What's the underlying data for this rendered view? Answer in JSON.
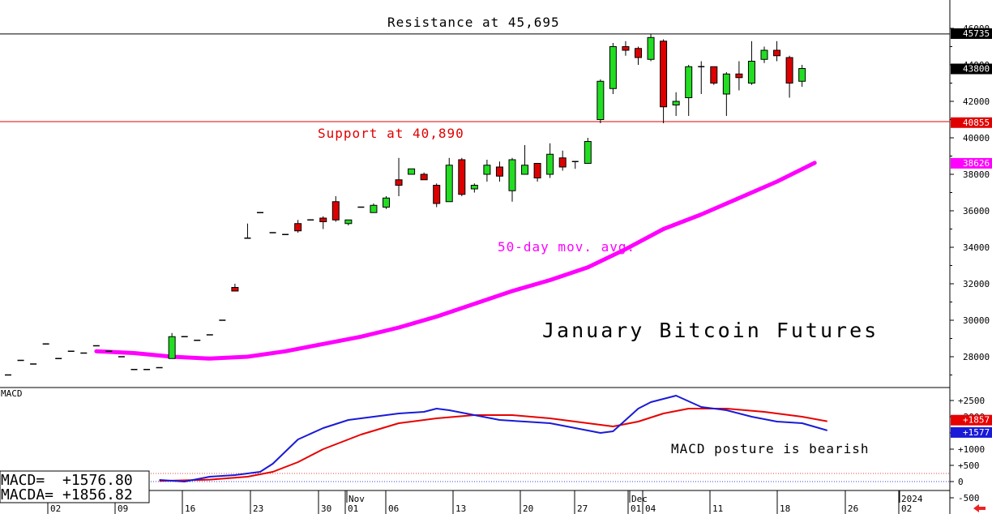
{
  "chart_data": [
    {
      "type": "candlestick",
      "title": "January Bitcoin Futures",
      "ylim": [
        26500,
        46500
      ],
      "y_ticks": [
        "46000",
        "44000",
        "42000",
        "40000",
        "38000",
        "36000",
        "34000",
        "32000",
        "30000",
        "28000"
      ],
      "grid": false,
      "x_tick_labels": [
        "02",
        "09",
        "16",
        "23",
        "30",
        "01",
        "06",
        "13",
        "20",
        "27",
        "01",
        "04",
        "11",
        "18",
        "26",
        "02"
      ],
      "x_month_labels": [
        "Nov",
        "Dec",
        "2024"
      ],
      "annotations": {
        "resistance": "Resistance at 45,695",
        "support": "Support at 40,890",
        "moving_average": "50-day mov. avg."
      },
      "levels": {
        "resistance": 45695,
        "support": 40890
      },
      "price_tags": {
        "resistance": "45735",
        "last": "43800",
        "support": "40855",
        "moving_average": "38626"
      },
      "colors": {
        "up": "#22dd22",
        "down": "#dd0000",
        "moving_average": "#ff00ff",
        "support": "#e00000",
        "resistance": "#000000"
      },
      "candles": [
        {
          "o": 27000,
          "h": 27000,
          "l": 27000,
          "c": 27000
        },
        {
          "o": 27800,
          "h": 27800,
          "l": 27800,
          "c": 27800
        },
        {
          "o": 27600,
          "h": 27600,
          "l": 27600,
          "c": 27600
        },
        {
          "o": 28700,
          "h": 28700,
          "l": 28700,
          "c": 28700
        },
        {
          "o": 27900,
          "h": 27900,
          "l": 27900,
          "c": 27900
        },
        {
          "o": 28300,
          "h": 28300,
          "l": 28300,
          "c": 28300
        },
        {
          "o": 28200,
          "h": 28200,
          "l": 28200,
          "c": 28200
        },
        {
          "o": 28600,
          "h": 28600,
          "l": 28600,
          "c": 28600
        },
        {
          "o": 28300,
          "h": 28300,
          "l": 28300,
          "c": 28300
        },
        {
          "o": 28000,
          "h": 28000,
          "l": 28000,
          "c": 28000
        },
        {
          "o": 27300,
          "h": 27300,
          "l": 27300,
          "c": 27300
        },
        {
          "o": 27300,
          "h": 27300,
          "l": 27300,
          "c": 27300
        },
        {
          "o": 27400,
          "h": 27400,
          "l": 27400,
          "c": 27400
        },
        {
          "o": 27900,
          "h": 29300,
          "l": 27900,
          "c": 29100
        },
        {
          "o": 29100,
          "h": 29100,
          "l": 29100,
          "c": 29100
        },
        {
          "o": 28900,
          "h": 28900,
          "l": 28900,
          "c": 28900
        },
        {
          "o": 29200,
          "h": 29200,
          "l": 29200,
          "c": 29200
        },
        {
          "o": 30000,
          "h": 30000,
          "l": 30000,
          "c": 30000
        },
        {
          "o": 31800,
          "h": 32000,
          "l": 31600,
          "c": 31600
        },
        {
          "o": 34500,
          "h": 35300,
          "l": 34500,
          "c": 34500
        },
        {
          "o": 35900,
          "h": 35900,
          "l": 35900,
          "c": 35900
        },
        {
          "o": 34800,
          "h": 34800,
          "l": 34800,
          "c": 34800
        },
        {
          "o": 34700,
          "h": 34700,
          "l": 34700,
          "c": 34700
        },
        {
          "o": 35300,
          "h": 35500,
          "l": 34800,
          "c": 34900
        },
        {
          "o": 35500,
          "h": 35500,
          "l": 35500,
          "c": 35500
        },
        {
          "o": 35600,
          "h": 35700,
          "l": 35000,
          "c": 35400
        },
        {
          "o": 36500,
          "h": 36800,
          "l": 35400,
          "c": 35500
        },
        {
          "o": 35300,
          "h": 35500,
          "l": 35200,
          "c": 35500
        },
        {
          "o": 36200,
          "h": 36200,
          "l": 36200,
          "c": 36200
        },
        {
          "o": 35900,
          "h": 36400,
          "l": 35900,
          "c": 36300
        },
        {
          "o": 36200,
          "h": 36800,
          "l": 36100,
          "c": 36700
        },
        {
          "o": 37700,
          "h": 38900,
          "l": 36800,
          "c": 37400
        },
        {
          "o": 38000,
          "h": 38300,
          "l": 38000,
          "c": 38300
        },
        {
          "o": 38000,
          "h": 38100,
          "l": 37700,
          "c": 37700
        },
        {
          "o": 37400,
          "h": 37500,
          "l": 36200,
          "c": 36400
        },
        {
          "o": 36500,
          "h": 38900,
          "l": 36500,
          "c": 38500
        },
        {
          "o": 38800,
          "h": 38900,
          "l": 36800,
          "c": 36900
        },
        {
          "o": 37200,
          "h": 37500,
          "l": 37000,
          "c": 37400
        },
        {
          "o": 38000,
          "h": 38800,
          "l": 37600,
          "c": 38500
        },
        {
          "o": 38400,
          "h": 38700,
          "l": 37600,
          "c": 37900
        },
        {
          "o": 37100,
          "h": 38900,
          "l": 36500,
          "c": 38800
        },
        {
          "o": 38000,
          "h": 39600,
          "l": 38000,
          "c": 38500
        },
        {
          "o": 38600,
          "h": 38600,
          "l": 37600,
          "c": 37800
        },
        {
          "o": 38000,
          "h": 39700,
          "l": 37800,
          "c": 39100
        },
        {
          "o": 38900,
          "h": 39300,
          "l": 38200,
          "c": 38400
        },
        {
          "o": 38700,
          "h": 38700,
          "l": 38300,
          "c": 38700
        },
        {
          "o": 38600,
          "h": 40000,
          "l": 38600,
          "c": 39800
        },
        {
          "o": 41000,
          "h": 43200,
          "l": 40800,
          "c": 43100
        },
        {
          "o": 42700,
          "h": 45200,
          "l": 42400,
          "c": 45000
        },
        {
          "o": 45000,
          "h": 45300,
          "l": 44500,
          "c": 44800
        },
        {
          "o": 44900,
          "h": 45000,
          "l": 44000,
          "c": 44400
        },
        {
          "o": 44300,
          "h": 45700,
          "l": 44200,
          "c": 45500
        },
        {
          "o": 45300,
          "h": 45400,
          "l": 40800,
          "c": 41700
        },
        {
          "o": 41800,
          "h": 42500,
          "l": 41200,
          "c": 42000
        },
        {
          "o": 42200,
          "h": 44000,
          "l": 41200,
          "c": 43900
        },
        {
          "o": 43900,
          "h": 44200,
          "l": 42400,
          "c": 43900
        },
        {
          "o": 43900,
          "h": 43900,
          "l": 42900,
          "c": 43000
        },
        {
          "o": 42400,
          "h": 43600,
          "l": 41200,
          "c": 43500
        },
        {
          "o": 43500,
          "h": 44200,
          "l": 42600,
          "c": 43300
        },
        {
          "o": 43000,
          "h": 45300,
          "l": 42900,
          "c": 44200
        },
        {
          "o": 44300,
          "h": 45000,
          "l": 44100,
          "c": 44800
        },
        {
          "o": 44800,
          "h": 45300,
          "l": 44200,
          "c": 44500
        },
        {
          "o": 44400,
          "h": 44500,
          "l": 42200,
          "c": 43000
        },
        {
          "o": 43100,
          "h": 44000,
          "l": 42800,
          "c": 43800
        }
      ],
      "moving_average": [
        {
          "i": 7,
          "v": 28300
        },
        {
          "i": 10,
          "v": 28200
        },
        {
          "i": 13,
          "v": 28000
        },
        {
          "i": 16,
          "v": 27900
        },
        {
          "i": 19,
          "v": 28000
        },
        {
          "i": 22,
          "v": 28300
        },
        {
          "i": 25,
          "v": 28700
        },
        {
          "i": 28,
          "v": 29100
        },
        {
          "i": 31,
          "v": 29600
        },
        {
          "i": 34,
          "v": 30200
        },
        {
          "i": 37,
          "v": 30900
        },
        {
          "i": 40,
          "v": 31600
        },
        {
          "i": 43,
          "v": 32200
        },
        {
          "i": 46,
          "v": 32900
        },
        {
          "i": 49,
          "v": 33900
        },
        {
          "i": 52,
          "v": 35000
        },
        {
          "i": 55,
          "v": 35800
        },
        {
          "i": 58,
          "v": 36700
        },
        {
          "i": 61,
          "v": 37600
        },
        {
          "i": 64,
          "v": 38626
        }
      ]
    },
    {
      "type": "line",
      "title": "MACD",
      "annotation": "MACD posture is bearish",
      "ylim": [
        -250,
        2850
      ],
      "y_ticks": [
        "+2500",
        "+2000",
        "+1500",
        "+1000",
        "+500",
        "0",
        "-500"
      ],
      "readout": {
        "macd_label": "MACD=",
        "macd_value": "+1576.80",
        "macda_label": "MACDA=",
        "macda_value": "+1856.82"
      },
      "price_tags": {
        "macda": "+1857",
        "macd": "+1577"
      },
      "series": [
        {
          "name": "MACD",
          "color": "#1a1ad8",
          "points": [
            {
              "i": 12,
              "v": 50
            },
            {
              "i": 14,
              "v": 0
            },
            {
              "i": 16,
              "v": 150
            },
            {
              "i": 18,
              "v": 200
            },
            {
              "i": 20,
              "v": 300
            },
            {
              "i": 21,
              "v": 550
            },
            {
              "i": 23,
              "v": 1300
            },
            {
              "i": 25,
              "v": 1650
            },
            {
              "i": 27,
              "v": 1900
            },
            {
              "i": 29,
              "v": 2000
            },
            {
              "i": 31,
              "v": 2100
            },
            {
              "i": 33,
              "v": 2150
            },
            {
              "i": 34,
              "v": 2250
            },
            {
              "i": 35,
              "v": 2200
            },
            {
              "i": 37,
              "v": 2050
            },
            {
              "i": 39,
              "v": 1900
            },
            {
              "i": 41,
              "v": 1850
            },
            {
              "i": 43,
              "v": 1800
            },
            {
              "i": 45,
              "v": 1650
            },
            {
              "i": 47,
              "v": 1500
            },
            {
              "i": 48,
              "v": 1550
            },
            {
              "i": 49,
              "v": 1900
            },
            {
              "i": 50,
              "v": 2250
            },
            {
              "i": 51,
              "v": 2450
            },
            {
              "i": 53,
              "v": 2650
            },
            {
              "i": 55,
              "v": 2300
            },
            {
              "i": 57,
              "v": 2200
            },
            {
              "i": 59,
              "v": 2000
            },
            {
              "i": 61,
              "v": 1850
            },
            {
              "i": 63,
              "v": 1800
            },
            {
              "i": 65,
              "v": 1577
            }
          ]
        },
        {
          "name": "MACDA",
          "color": "#e80000",
          "points": [
            {
              "i": 12,
              "v": 20
            },
            {
              "i": 16,
              "v": 60
            },
            {
              "i": 19,
              "v": 150
            },
            {
              "i": 21,
              "v": 300
            },
            {
              "i": 23,
              "v": 600
            },
            {
              "i": 25,
              "v": 1000
            },
            {
              "i": 28,
              "v": 1450
            },
            {
              "i": 31,
              "v": 1800
            },
            {
              "i": 34,
              "v": 1950
            },
            {
              "i": 37,
              "v": 2050
            },
            {
              "i": 40,
              "v": 2050
            },
            {
              "i": 43,
              "v": 1950
            },
            {
              "i": 46,
              "v": 1800
            },
            {
              "i": 48,
              "v": 1700
            },
            {
              "i": 50,
              "v": 1850
            },
            {
              "i": 52,
              "v": 2100
            },
            {
              "i": 54,
              "v": 2250
            },
            {
              "i": 57,
              "v": 2250
            },
            {
              "i": 60,
              "v": 2150
            },
            {
              "i": 63,
              "v": 2000
            },
            {
              "i": 65,
              "v": 1857
            }
          ]
        }
      ],
      "reference_lines": [
        {
          "v": 0,
          "color": "#0000cc"
        },
        {
          "v": 250,
          "color": "#e00000"
        }
      ]
    }
  ],
  "ui": {
    "back_arrow_icon": "left-arrow-icon",
    "back_arrow_color": "#ee2222"
  }
}
